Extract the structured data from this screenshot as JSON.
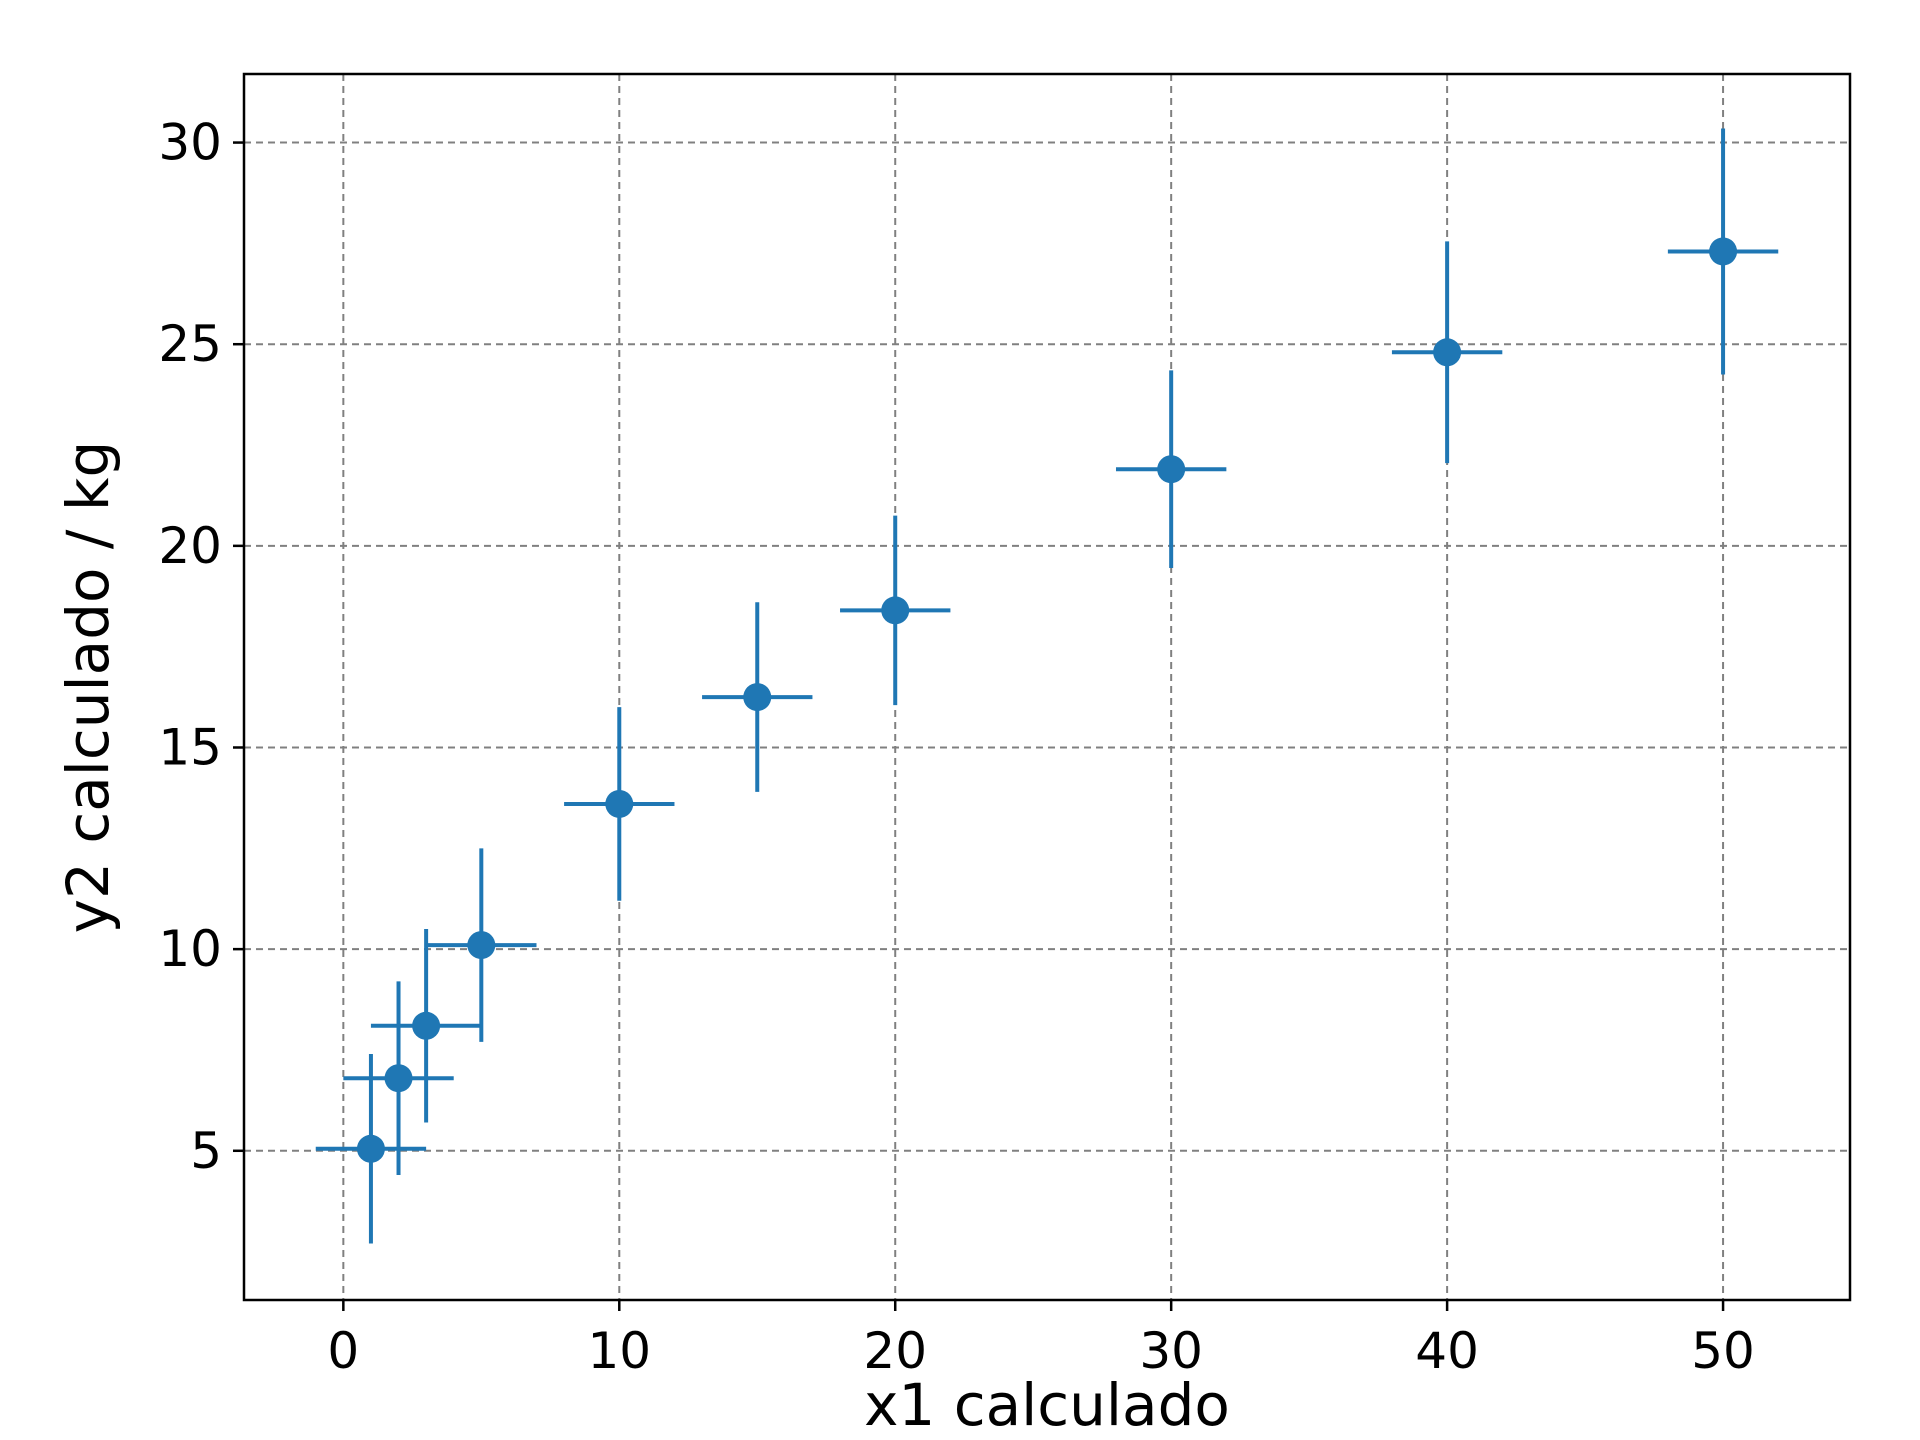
{
  "chart_data": {
    "type": "scatter",
    "title": "",
    "xlabel": "x1 calculado",
    "ylabel": "y2 calculado / kg",
    "xlim": [
      -3.6,
      54.6
    ],
    "ylim": [
      1.3,
      31.7
    ],
    "xticks": [
      0,
      10,
      20,
      30,
      40,
      50
    ],
    "yticks": [
      5,
      10,
      15,
      20,
      25,
      30
    ],
    "grid": true,
    "legend": "none",
    "series": [
      {
        "color": "#1f77b4",
        "points": [
          {
            "x": 1,
            "y": 5.05,
            "xerr": 2,
            "yerr": 2.35
          },
          {
            "x": 2,
            "y": 6.8,
            "xerr": 2,
            "yerr": 2.4
          },
          {
            "x": 3,
            "y": 8.1,
            "xerr": 2,
            "yerr": 2.4
          },
          {
            "x": 5,
            "y": 10.1,
            "xerr": 2,
            "yerr": 2.4
          },
          {
            "x": 10,
            "y": 13.6,
            "xerr": 2,
            "yerr": 2.4
          },
          {
            "x": 15,
            "y": 16.25,
            "xerr": 2,
            "yerr": 2.35
          },
          {
            "x": 20,
            "y": 18.4,
            "xerr": 2,
            "yerr": 2.35
          },
          {
            "x": 30,
            "y": 21.9,
            "xerr": 2,
            "yerr": 2.45
          },
          {
            "x": 40,
            "y": 24.8,
            "xerr": 2,
            "yerr": 2.75
          },
          {
            "x": 50,
            "y": 27.3,
            "xerr": 2,
            "yerr": 3.05
          }
        ]
      }
    ]
  }
}
